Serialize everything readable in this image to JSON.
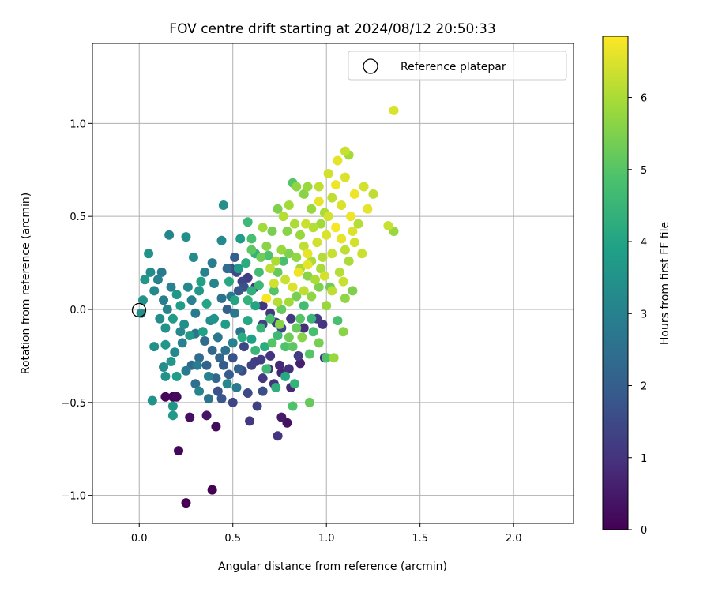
{
  "chart_data": {
    "type": "scatter",
    "title": "FOV centre drift starting at 2024/08/12 20:50:33",
    "xlabel": "Angular distance from reference (arcmin)",
    "ylabel": "Rotation from reference (arcmin)",
    "xlim": [
      -0.25,
      2.32
    ],
    "ylim": [
      -1.15,
      1.43
    ],
    "xticks": [
      0.0,
      0.5,
      1.0,
      1.5,
      2.0
    ],
    "xtick_labels": [
      "0.0",
      "0.5",
      "1.0",
      "1.5",
      "2.0"
    ],
    "yticks": [
      -1.0,
      -0.5,
      0.0,
      0.5,
      1.0
    ],
    "ytick_labels": [
      "−1.0",
      "−0.5",
      "0.0",
      "0.5",
      "1.0"
    ],
    "grid": true,
    "legend": {
      "placement": "top-right",
      "entries": [
        "Reference platepar"
      ]
    },
    "reference_point": {
      "x": 0.0,
      "y": 0.0
    },
    "colorbar": {
      "label": "Hours from first FF file",
      "range": [
        0,
        6.85
      ],
      "ticks": [
        0,
        1,
        2,
        3,
        4,
        5,
        6
      ],
      "colormap": "viridis"
    },
    "points": [
      {
        "x": 0.25,
        "y": -1.04,
        "h": 0.0
      },
      {
        "x": 0.39,
        "y": -0.97,
        "h": 0.0
      },
      {
        "x": 0.21,
        "y": -0.76,
        "h": 0.1
      },
      {
        "x": 0.18,
        "y": -0.47,
        "h": 0.1
      },
      {
        "x": 0.14,
        "y": -0.47,
        "h": 0.1
      },
      {
        "x": 0.2,
        "y": -0.47,
        "h": 0.2
      },
      {
        "x": 0.41,
        "y": -0.63,
        "h": 0.2
      },
      {
        "x": 0.27,
        "y": -0.58,
        "h": 0.3
      },
      {
        "x": 0.36,
        "y": -0.57,
        "h": 0.4
      },
      {
        "x": 0.79,
        "y": -0.61,
        "h": 0.3
      },
      {
        "x": 0.76,
        "y": -0.58,
        "h": 0.5
      },
      {
        "x": 0.74,
        "y": -0.68,
        "h": 1.0
      },
      {
        "x": 0.59,
        "y": -0.6,
        "h": 1.1
      },
      {
        "x": 0.63,
        "y": -0.52,
        "h": 1.3
      },
      {
        "x": 0.5,
        "y": -0.5,
        "h": 1.4
      },
      {
        "x": 0.81,
        "y": -0.42,
        "h": 0.8
      },
      {
        "x": 0.86,
        "y": -0.29,
        "h": 0.6
      },
      {
        "x": 0.99,
        "y": -0.26,
        "h": 0.9
      },
      {
        "x": 0.85,
        "y": -0.25,
        "h": 1.2
      },
      {
        "x": 0.76,
        "y": -0.34,
        "h": 0.7
      },
      {
        "x": 0.69,
        "y": -0.32,
        "h": 0.9
      },
      {
        "x": 0.72,
        "y": -0.4,
        "h": 1.0
      },
      {
        "x": 0.66,
        "y": -0.37,
        "h": 1.1
      },
      {
        "x": 0.62,
        "y": -0.28,
        "h": 1.2
      },
      {
        "x": 0.56,
        "y": -0.2,
        "h": 1.4
      },
      {
        "x": 0.58,
        "y": -0.45,
        "h": 1.5
      },
      {
        "x": 0.66,
        "y": -0.44,
        "h": 1.6
      },
      {
        "x": 0.42,
        "y": -0.44,
        "h": 1.7
      },
      {
        "x": 0.44,
        "y": -0.48,
        "h": 1.8
      },
      {
        "x": 0.48,
        "y": -0.35,
        "h": 1.9
      },
      {
        "x": 0.53,
        "y": -0.32,
        "h": 2.0
      },
      {
        "x": 0.36,
        "y": -0.3,
        "h": 2.1
      },
      {
        "x": 0.41,
        "y": -0.37,
        "h": 2.2
      },
      {
        "x": 0.28,
        "y": -0.3,
        "h": 2.3
      },
      {
        "x": 0.32,
        "y": -0.26,
        "h": 2.4
      },
      {
        "x": 0.46,
        "y": -0.22,
        "h": 2.5
      },
      {
        "x": 0.54,
        "y": -0.12,
        "h": 2.6
      },
      {
        "x": 0.51,
        "y": -0.02,
        "h": 2.7
      },
      {
        "x": 0.49,
        "y": 0.07,
        "h": 2.8
      },
      {
        "x": 0.52,
        "y": 0.2,
        "h": 1.5
      },
      {
        "x": 0.56,
        "y": 0.12,
        "h": 1.7
      },
      {
        "x": 0.51,
        "y": 0.28,
        "h": 2.0
      },
      {
        "x": 0.47,
        "y": 0.22,
        "h": 2.4
      },
      {
        "x": 0.44,
        "y": 0.37,
        "h": 3.2
      },
      {
        "x": 0.45,
        "y": 0.56,
        "h": 3.4
      },
      {
        "x": 0.39,
        "y": 0.25,
        "h": 2.9
      },
      {
        "x": 0.35,
        "y": 0.2,
        "h": 3.0
      },
      {
        "x": 0.29,
        "y": 0.28,
        "h": 3.3
      },
      {
        "x": 0.25,
        "y": 0.39,
        "h": 3.4
      },
      {
        "x": 0.16,
        "y": 0.4,
        "h": 3.1
      },
      {
        "x": 0.05,
        "y": 0.3,
        "h": 3.5
      },
      {
        "x": 0.06,
        "y": 0.2,
        "h": 3.3
      },
      {
        "x": 0.03,
        "y": 0.16,
        "h": 3.6
      },
      {
        "x": 0.02,
        "y": 0.05,
        "h": 3.5
      },
      {
        "x": 0.01,
        "y": -0.02,
        "h": 3.4
      },
      {
        "x": 0.08,
        "y": 0.1,
        "h": 3.2
      },
      {
        "x": 0.1,
        "y": 0.16,
        "h": 3.0
      },
      {
        "x": 0.13,
        "y": 0.05,
        "h": 2.9
      },
      {
        "x": 0.15,
        "y": 0.0,
        "h": 3.1
      },
      {
        "x": 0.11,
        "y": -0.05,
        "h": 3.3
      },
      {
        "x": 0.14,
        "y": -0.1,
        "h": 3.5
      },
      {
        "x": 0.18,
        "y": -0.05,
        "h": 3.7
      },
      {
        "x": 0.2,
        "y": 0.08,
        "h": 3.6
      },
      {
        "x": 0.22,
        "y": 0.02,
        "h": 3.8
      },
      {
        "x": 0.24,
        "y": -0.08,
        "h": 3.4
      },
      {
        "x": 0.26,
        "y": 0.12,
        "h": 3.2
      },
      {
        "x": 0.28,
        "y": 0.05,
        "h": 3.0
      },
      {
        "x": 0.3,
        "y": -0.02,
        "h": 2.8
      },
      {
        "x": 0.32,
        "y": 0.1,
        "h": 3.6
      },
      {
        "x": 0.34,
        "y": -0.12,
        "h": 3.9
      },
      {
        "x": 0.36,
        "y": 0.03,
        "h": 4.0
      },
      {
        "x": 0.38,
        "y": -0.06,
        "h": 3.3
      },
      {
        "x": 0.4,
        "y": 0.14,
        "h": 3.1
      },
      {
        "x": 0.42,
        "y": -0.15,
        "h": 2.7
      },
      {
        "x": 0.44,
        "y": 0.06,
        "h": 2.6
      },
      {
        "x": 0.46,
        "y": -0.08,
        "h": 3.8
      },
      {
        "x": 0.48,
        "y": 0.15,
        "h": 4.1
      },
      {
        "x": 0.5,
        "y": -0.18,
        "h": 3.0
      },
      {
        "x": 0.08,
        "y": -0.2,
        "h": 3.4
      },
      {
        "x": 0.14,
        "y": -0.19,
        "h": 3.6
      },
      {
        "x": 0.19,
        "y": -0.23,
        "h": 3.2
      },
      {
        "x": 0.23,
        "y": -0.18,
        "h": 3.0
      },
      {
        "x": 0.13,
        "y": -0.31,
        "h": 3.3
      },
      {
        "x": 0.17,
        "y": -0.28,
        "h": 3.6
      },
      {
        "x": 0.14,
        "y": -0.36,
        "h": 3.5
      },
      {
        "x": 0.2,
        "y": -0.36,
        "h": 3.8
      },
      {
        "x": 0.18,
        "y": -0.52,
        "h": 3.6
      },
      {
        "x": 0.07,
        "y": -0.49,
        "h": 3.5
      },
      {
        "x": 0.18,
        "y": -0.57,
        "h": 3.7
      },
      {
        "x": 0.32,
        "y": -0.44,
        "h": 3.1
      },
      {
        "x": 0.37,
        "y": -0.48,
        "h": 2.6
      },
      {
        "x": 0.25,
        "y": -0.33,
        "h": 2.8
      },
      {
        "x": 0.3,
        "y": -0.4,
        "h": 2.5
      },
      {
        "x": 0.39,
        "y": -0.22,
        "h": 2.3
      },
      {
        "x": 0.54,
        "y": 0.38,
        "h": 3.8
      },
      {
        "x": 0.58,
        "y": 0.47,
        "h": 4.6
      },
      {
        "x": 0.6,
        "y": 0.38,
        "h": 4.8
      },
      {
        "x": 0.57,
        "y": 0.25,
        "h": 4.2
      },
      {
        "x": 0.62,
        "y": 0.3,
        "h": 4.4
      },
      {
        "x": 0.64,
        "y": 0.2,
        "h": 4.7
      },
      {
        "x": 0.6,
        "y": 0.1,
        "h": 4.3
      },
      {
        "x": 0.62,
        "y": 0.02,
        "h": 4.0
      },
      {
        "x": 0.58,
        "y": -0.06,
        "h": 4.1
      },
      {
        "x": 0.6,
        "y": -0.16,
        "h": 3.9
      },
      {
        "x": 0.65,
        "y": -0.1,
        "h": 4.5
      },
      {
        "x": 0.67,
        "y": -0.2,
        "h": 4.2
      },
      {
        "x": 0.7,
        "y": -0.05,
        "h": 4.8
      },
      {
        "x": 0.72,
        "y": 0.1,
        "h": 5.0
      },
      {
        "x": 0.74,
        "y": -0.14,
        "h": 4.6
      },
      {
        "x": 0.76,
        "y": 0.0,
        "h": 5.2
      },
      {
        "x": 0.78,
        "y": -0.2,
        "h": 4.9
      },
      {
        "x": 0.8,
        "y": -0.15,
        "h": 5.3
      },
      {
        "x": 0.82,
        "y": -0.2,
        "h": 5.1
      },
      {
        "x": 0.84,
        "y": 0.07,
        "h": 5.4
      },
      {
        "x": 0.86,
        "y": -0.05,
        "h": 5.0
      },
      {
        "x": 0.88,
        "y": 0.02,
        "h": 4.7
      },
      {
        "x": 0.92,
        "y": -0.05,
        "h": 4.5
      },
      {
        "x": 0.93,
        "y": -0.12,
        "h": 4.8
      },
      {
        "x": 0.91,
        "y": -0.24,
        "h": 5.0
      },
      {
        "x": 0.83,
        "y": -0.4,
        "h": 4.4
      },
      {
        "x": 0.78,
        "y": -0.36,
        "h": 4.1
      },
      {
        "x": 0.73,
        "y": -0.42,
        "h": 4.3
      },
      {
        "x": 0.68,
        "y": -0.32,
        "h": 4.6
      },
      {
        "x": 0.82,
        "y": -0.52,
        "h": 4.9
      },
      {
        "x": 0.91,
        "y": -0.5,
        "h": 5.2
      },
      {
        "x": 1.04,
        "y": -0.26,
        "h": 5.8
      },
      {
        "x": 1.0,
        "y": -0.26,
        "h": 4.9
      },
      {
        "x": 1.09,
        "y": -0.12,
        "h": 5.6
      },
      {
        "x": 1.06,
        "y": -0.06,
        "h": 4.8
      },
      {
        "x": 1.1,
        "y": 0.06,
        "h": 5.7
      },
      {
        "x": 1.14,
        "y": 0.1,
        "h": 5.5
      },
      {
        "x": 1.02,
        "y": 0.12,
        "h": 5.3
      },
      {
        "x": 0.96,
        "y": 0.12,
        "h": 5.5
      },
      {
        "x": 0.9,
        "y": 0.18,
        "h": 5.6
      },
      {
        "x": 0.86,
        "y": 0.22,
        "h": 5.9
      },
      {
        "x": 0.84,
        "y": 0.28,
        "h": 5.7
      },
      {
        "x": 0.8,
        "y": 0.3,
        "h": 5.5
      },
      {
        "x": 0.76,
        "y": 0.32,
        "h": 5.8
      },
      {
        "x": 0.73,
        "y": 0.26,
        "h": 6.0
      },
      {
        "x": 0.7,
        "y": 0.22,
        "h": 6.2
      },
      {
        "x": 0.68,
        "y": 0.34,
        "h": 5.6
      },
      {
        "x": 0.71,
        "y": 0.42,
        "h": 5.4
      },
      {
        "x": 0.66,
        "y": 0.44,
        "h": 5.9
      },
      {
        "x": 0.68,
        "y": 0.06,
        "h": 6.8
      },
      {
        "x": 0.72,
        "y": 0.14,
        "h": 6.4
      },
      {
        "x": 0.74,
        "y": 0.04,
        "h": 6.1
      },
      {
        "x": 0.78,
        "y": 0.16,
        "h": 6.3
      },
      {
        "x": 0.8,
        "y": 0.04,
        "h": 5.9
      },
      {
        "x": 0.82,
        "y": 0.12,
        "h": 6.5
      },
      {
        "x": 0.85,
        "y": 0.2,
        "h": 6.7
      },
      {
        "x": 0.88,
        "y": 0.1,
        "h": 6.2
      },
      {
        "x": 0.9,
        "y": 0.3,
        "h": 6.6
      },
      {
        "x": 0.92,
        "y": 0.26,
        "h": 6.0
      },
      {
        "x": 0.95,
        "y": 0.36,
        "h": 6.4
      },
      {
        "x": 0.98,
        "y": 0.28,
        "h": 6.1
      },
      {
        "x": 1.0,
        "y": 0.4,
        "h": 6.5
      },
      {
        "x": 1.03,
        "y": 0.3,
        "h": 6.3
      },
      {
        "x": 1.05,
        "y": 0.44,
        "h": 6.8
      },
      {
        "x": 1.08,
        "y": 0.38,
        "h": 6.6
      },
      {
        "x": 1.1,
        "y": 0.32,
        "h": 6.2
      },
      {
        "x": 1.12,
        "y": 0.26,
        "h": 6.0
      },
      {
        "x": 1.15,
        "y": 0.36,
        "h": 6.4
      },
      {
        "x": 1.17,
        "y": 0.46,
        "h": 6.1
      },
      {
        "x": 1.19,
        "y": 0.3,
        "h": 6.3
      },
      {
        "x": 1.13,
        "y": 0.5,
        "h": 6.7
      },
      {
        "x": 1.08,
        "y": 0.56,
        "h": 6.5
      },
      {
        "x": 1.03,
        "y": 0.6,
        "h": 6.2
      },
      {
        "x": 0.99,
        "y": 0.52,
        "h": 6.0
      },
      {
        "x": 0.96,
        "y": 0.58,
        "h": 6.6
      },
      {
        "x": 0.92,
        "y": 0.54,
        "h": 5.8
      },
      {
        "x": 0.88,
        "y": 0.62,
        "h": 5.6
      },
      {
        "x": 0.84,
        "y": 0.66,
        "h": 5.7
      },
      {
        "x": 0.8,
        "y": 0.56,
        "h": 5.9
      },
      {
        "x": 0.77,
        "y": 0.5,
        "h": 6.1
      },
      {
        "x": 0.74,
        "y": 0.54,
        "h": 5.5
      },
      {
        "x": 0.82,
        "y": 0.68,
        "h": 5.0
      },
      {
        "x": 0.9,
        "y": 0.66,
        "h": 5.8
      },
      {
        "x": 0.96,
        "y": 0.66,
        "h": 6.2
      },
      {
        "x": 1.01,
        "y": 0.73,
        "h": 6.4
      },
      {
        "x": 1.05,
        "y": 0.67,
        "h": 6.7
      },
      {
        "x": 1.1,
        "y": 0.71,
        "h": 6.5
      },
      {
        "x": 1.1,
        "y": 0.85,
        "h": 6.3
      },
      {
        "x": 1.12,
        "y": 0.83,
        "h": 5.9
      },
      {
        "x": 1.06,
        "y": 0.8,
        "h": 6.6
      },
      {
        "x": 1.2,
        "y": 0.66,
        "h": 6.4
      },
      {
        "x": 1.25,
        "y": 0.62,
        "h": 6.2
      },
      {
        "x": 1.22,
        "y": 0.54,
        "h": 6.6
      },
      {
        "x": 1.36,
        "y": 1.07,
        "h": 6.5
      },
      {
        "x": 1.33,
        "y": 0.45,
        "h": 6.3
      },
      {
        "x": 1.36,
        "y": 0.42,
        "h": 5.8
      },
      {
        "x": 1.15,
        "y": 0.62,
        "h": 6.7
      },
      {
        "x": 1.14,
        "y": 0.42,
        "h": 6.5
      },
      {
        "x": 1.07,
        "y": 0.2,
        "h": 6.1
      },
      {
        "x": 1.09,
        "y": 0.15,
        "h": 6.3
      },
      {
        "x": 0.99,
        "y": 0.18,
        "h": 6.4
      },
      {
        "x": 0.94,
        "y": 0.16,
        "h": 6.0
      },
      {
        "x": 0.87,
        "y": -0.15,
        "h": 5.6
      },
      {
        "x": 0.96,
        "y": -0.18,
        "h": 5.4
      },
      {
        "x": 0.84,
        "y": -0.1,
        "h": 5.2
      },
      {
        "x": 0.75,
        "y": -0.08,
        "h": 5.6
      },
      {
        "x": 0.71,
        "y": -0.18,
        "h": 5.0
      },
      {
        "x": 0.62,
        "y": -0.22,
        "h": 4.5
      },
      {
        "x": 0.55,
        "y": -0.15,
        "h": 4.2
      },
      {
        "x": 0.51,
        "y": 0.05,
        "h": 4.0
      },
      {
        "x": 0.58,
        "y": 0.05,
        "h": 4.4
      },
      {
        "x": 0.64,
        "y": 0.13,
        "h": 4.6
      },
      {
        "x": 0.53,
        "y": 0.22,
        "h": 3.7
      },
      {
        "x": 0.4,
        "y": -0.05,
        "h": 3.5
      },
      {
        "x": 0.33,
        "y": 0.15,
        "h": 3.9
      },
      {
        "x": 0.27,
        "y": -0.14,
        "h": 3.7
      },
      {
        "x": 0.22,
        "y": -0.12,
        "h": 3.2
      },
      {
        "x": 0.17,
        "y": 0.12,
        "h": 3.0
      },
      {
        "x": 0.12,
        "y": 0.2,
        "h": 2.8
      },
      {
        "x": 0.43,
        "y": -0.26,
        "h": 2.2
      },
      {
        "x": 0.45,
        "y": -0.3,
        "h": 1.9
      },
      {
        "x": 0.5,
        "y": -0.26,
        "h": 1.7
      },
      {
        "x": 0.55,
        "y": -0.33,
        "h": 1.5
      },
      {
        "x": 0.6,
        "y": -0.3,
        "h": 1.3
      },
      {
        "x": 0.65,
        "y": -0.27,
        "h": 1.2
      },
      {
        "x": 0.7,
        "y": -0.25,
        "h": 1.0
      },
      {
        "x": 0.75,
        "y": -0.3,
        "h": 0.8
      },
      {
        "x": 0.8,
        "y": -0.32,
        "h": 0.9
      },
      {
        "x": 0.47,
        "y": 0.0,
        "h": 2.0
      },
      {
        "x": 0.53,
        "y": 0.1,
        "h": 1.8
      },
      {
        "x": 0.49,
        "y": 0.22,
        "h": 1.6
      },
      {
        "x": 0.55,
        "y": 0.15,
        "h": 1.4
      },
      {
        "x": 0.58,
        "y": 0.17,
        "h": 1.2
      },
      {
        "x": 0.62,
        "y": 0.12,
        "h": 1.1
      },
      {
        "x": 0.66,
        "y": 0.02,
        "h": 1.0
      },
      {
        "x": 0.7,
        "y": -0.02,
        "h": 1.1
      },
      {
        "x": 0.66,
        "y": -0.08,
        "h": 1.3
      },
      {
        "x": 0.73,
        "y": -0.07,
        "h": 1.2
      },
      {
        "x": 0.76,
        "y": -0.1,
        "h": 1.4
      },
      {
        "x": 0.81,
        "y": -0.05,
        "h": 1.1
      },
      {
        "x": 0.88,
        "y": -0.1,
        "h": 0.9
      },
      {
        "x": 0.98,
        "y": -0.08,
        "h": 1.0
      },
      {
        "x": 0.95,
        "y": -0.05,
        "h": 1.2
      },
      {
        "x": 0.3,
        "y": -0.13,
        "h": 2.6
      },
      {
        "x": 0.35,
        "y": -0.17,
        "h": 2.4
      },
      {
        "x": 0.31,
        "y": -0.3,
        "h": 2.9
      },
      {
        "x": 0.37,
        "y": -0.36,
        "h": 3.0
      },
      {
        "x": 0.47,
        "y": -0.4,
        "h": 3.2
      },
      {
        "x": 0.52,
        "y": -0.42,
        "h": 2.8
      },
      {
        "x": 0.6,
        "y": 0.32,
        "h": 5.1
      },
      {
        "x": 0.65,
        "y": 0.28,
        "h": 5.3
      },
      {
        "x": 0.69,
        "y": 0.29,
        "h": 4.9
      },
      {
        "x": 0.74,
        "y": 0.2,
        "h": 5.2
      },
      {
        "x": 0.77,
        "y": 0.26,
        "h": 4.8
      },
      {
        "x": 0.79,
        "y": 0.42,
        "h": 5.6
      },
      {
        "x": 0.83,
        "y": 0.46,
        "h": 6.0
      },
      {
        "x": 0.86,
        "y": 0.4,
        "h": 5.8
      },
      {
        "x": 0.89,
        "y": 0.46,
        "h": 6.3
      },
      {
        "x": 0.93,
        "y": 0.44,
        "h": 6.1
      },
      {
        "x": 0.97,
        "y": 0.46,
        "h": 5.9
      },
      {
        "x": 1.01,
        "y": 0.5,
        "h": 6.4
      },
      {
        "x": 0.88,
        "y": 0.34,
        "h": 6.2
      },
      {
        "x": 0.9,
        "y": 0.24,
        "h": 6.6
      },
      {
        "x": 0.97,
        "y": 0.22,
        "h": 6.0
      },
      {
        "x": 1.0,
        "y": 0.02,
        "h": 5.8
      },
      {
        "x": 1.03,
        "y": 0.1,
        "h": 6.2
      },
      {
        "x": 0.92,
        "y": 0.07,
        "h": 5.7
      }
    ]
  },
  "legend_label": "Reference platepar"
}
